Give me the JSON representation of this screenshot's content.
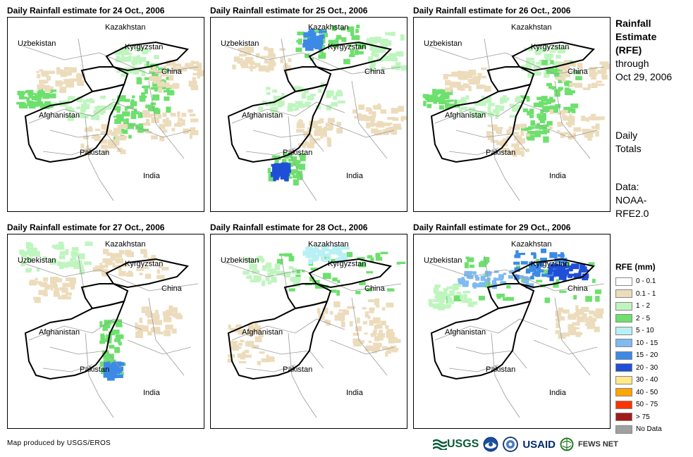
{
  "panels": [
    {
      "title": "Daily Rainfall estimate for 24 Oct., 2006",
      "intensity": "light-green"
    },
    {
      "title": "Daily Rainfall estimate for 25 Oct., 2006",
      "intensity": "mixed-blue"
    },
    {
      "title": "Daily Rainfall estimate for 26 Oct., 2006",
      "intensity": "light-green"
    },
    {
      "title": "Daily Rainfall estimate for 27 Oct., 2006",
      "intensity": "light-mixed"
    },
    {
      "title": "Daily Rainfall estimate for 28 Oct., 2006",
      "intensity": "green-north"
    },
    {
      "title": "Daily Rainfall estimate for 29 Oct., 2006",
      "intensity": "blue-north"
    }
  ],
  "map_labels": {
    "kazakhstan": "Kazakhstan",
    "uzbekistan": "Uzbekistan",
    "kyrgyzstan": "Kyrgyzstan",
    "china": "China",
    "afghanistan": "Afghanistan",
    "pakistan": "Pakistan",
    "india": "India"
  },
  "side": {
    "title_line1": "Rainfall",
    "title_line2": "Estimate",
    "title_line3": "(RFE)",
    "title_line4": "through",
    "title_line5": "Oct 29, 2006",
    "daily_line1": "Daily",
    "daily_line2": "Totals",
    "data_line1": "Data:",
    "data_line2": "NOAA-",
    "data_line3": "RFE2.0"
  },
  "legend": {
    "title": "RFE (mm)",
    "items": [
      {
        "label": "0 - 0.1",
        "color": "#ffffff"
      },
      {
        "label": "0.1 - 1",
        "color": "#ecdcbc"
      },
      {
        "label": "1 - 2",
        "color": "#bff5bf"
      },
      {
        "label": "2 - 5",
        "color": "#6de06d"
      },
      {
        "label": "5 - 10",
        "color": "#b8f0f5"
      },
      {
        "label": "10 - 15",
        "color": "#7fbaf0"
      },
      {
        "label": "15 - 20",
        "color": "#3d8ae6"
      },
      {
        "label": "20 - 30",
        "color": "#1f4fd6"
      },
      {
        "label": "30 - 40",
        "color": "#ffe98a"
      },
      {
        "label": "40 - 50",
        "color": "#ffa500"
      },
      {
        "label": "50 - 75",
        "color": "#ff3300"
      },
      {
        "label": "> 75",
        "color": "#a01c1c"
      },
      {
        "label": "No Data",
        "color": "#a0a0a0"
      }
    ]
  },
  "footer": {
    "credit": "Map produced by USGS/EROS",
    "usgs": "USGS",
    "usaid": "USAID",
    "fews": "FEWS NET"
  }
}
